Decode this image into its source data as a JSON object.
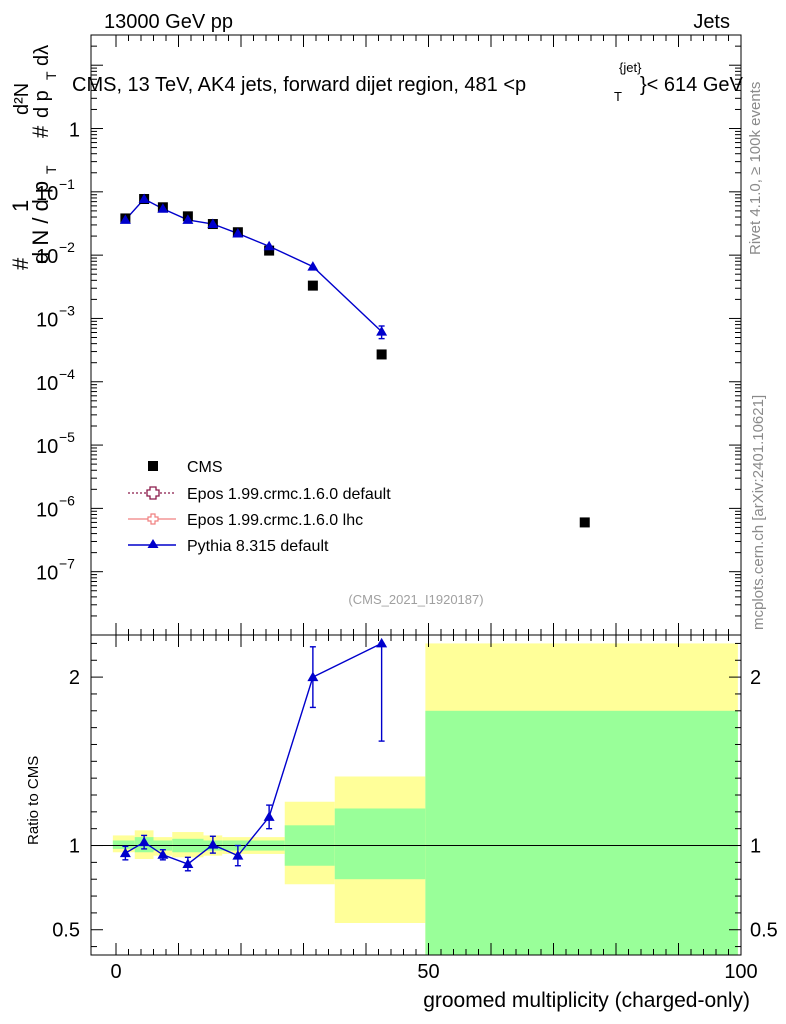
{
  "header": {
    "energy": "13000 GeV pp",
    "category": "Jets",
    "title": "CMS, 13 TeV, AK4 jets, forward dijet region, 481 <p",
    "title_sup": "{jet}",
    "title_sub": "T",
    "title_tail": "}< 614 GeV",
    "side_rivet": "Rivet 4.1.0, ≥ 100k events",
    "side_mcplots": "mcplots.cern.ch [arXiv:2401.10621]",
    "analysis_id": "(CMS_2021_I1920187)"
  },
  "colors": {
    "cms": "#000000",
    "epos_default": "#8b1a4a",
    "epos_lhc": "#f08080",
    "pythia": "#0000cc",
    "band_inner": "#99ff99",
    "band_outer": "#ffff99"
  },
  "chart_data": [
    {
      "type": "scatter",
      "panel": "main",
      "yscale": "log",
      "ylabel": "1/dN/dp_T  d²N/dp_T dλ",
      "ylabel_parts": {
        "num_hash": "#",
        "num_one": "1",
        "den": "d N / d p",
        "den_hash": "#",
        "right_num": "d²N",
        "right_den": "d p",
        "right_lambda": "dλ",
        "sub_t": "T"
      },
      "xlim": [
        -4,
        100
      ],
      "ylim": [
        1e-08,
        30
      ],
      "yticks": [
        {
          "v": 1e-07,
          "base": "10",
          "exp": "−7"
        },
        {
          "v": 1e-06,
          "base": "10",
          "exp": "−6"
        },
        {
          "v": 1e-05,
          "base": "10",
          "exp": "−5"
        },
        {
          "v": 0.0001,
          "base": "10",
          "exp": "−4"
        },
        {
          "v": 0.001,
          "base": "10",
          "exp": "−3"
        },
        {
          "v": 0.01,
          "base": "10",
          "exp": "−2"
        },
        {
          "v": 0.1,
          "base": "10",
          "exp": "−1"
        },
        {
          "v": 1,
          "base": "1",
          "exp": ""
        }
      ],
      "series": [
        {
          "name": "CMS",
          "style": "square",
          "x": [
            1.5,
            4.5,
            7.5,
            11.5,
            15.5,
            19.5,
            24.5,
            31.5,
            42.5,
            75
          ],
          "y": [
            0.038,
            0.077,
            0.057,
            0.041,
            0.031,
            0.023,
            0.0118,
            0.0033,
            0.00027,
            6e-07
          ]
        },
        {
          "name": "Epos 1.99.crmc.1.6.0 default",
          "style": "open-cross",
          "x": [],
          "y": []
        },
        {
          "name": "Epos 1.99.crmc.1.6.0 lhc",
          "style": "open-cross",
          "x": [],
          "y": []
        },
        {
          "name": "Pythia 8.315 default",
          "style": "triangle",
          "x": [
            1.5,
            4.5,
            7.5,
            11.5,
            15.5,
            19.5,
            24.5,
            31.5,
            42.5
          ],
          "y": [
            0.036,
            0.077,
            0.054,
            0.036,
            0.031,
            0.022,
            0.0138,
            0.0066,
            0.00062
          ],
          "err_y": [
            0,
            0,
            0,
            0,
            0,
            0,
            0,
            0,
            0.00014
          ]
        }
      ]
    },
    {
      "type": "line",
      "panel": "ratio",
      "ylabel": "Ratio to CMS",
      "xlabel": "groomed multiplicity (charged-only)",
      "xlim": [
        -4,
        100
      ],
      "ylim": [
        0.35,
        2.25
      ],
      "xticks": [
        0,
        50,
        100
      ],
      "yticks": [
        0.5,
        1,
        2
      ],
      "bands": [
        {
          "x0": -0.5,
          "x1": 3,
          "inner": [
            0.98,
            1.03
          ],
          "outer": [
            0.96,
            1.06
          ]
        },
        {
          "x0": 3,
          "x1": 6,
          "inner": [
            0.96,
            1.05
          ],
          "outer": [
            0.92,
            1.09
          ]
        },
        {
          "x0": 6,
          "x1": 9,
          "inner": [
            0.97,
            1.03
          ],
          "outer": [
            0.94,
            1.05
          ]
        },
        {
          "x0": 9,
          "x1": 14,
          "inner": [
            0.96,
            1.04
          ],
          "outer": [
            0.93,
            1.08
          ]
        },
        {
          "x0": 14,
          "x1": 17,
          "inner": [
            0.97,
            1.03
          ],
          "outer": [
            0.94,
            1.06
          ]
        },
        {
          "x0": 17,
          "x1": 22,
          "inner": [
            0.97,
            1.03
          ],
          "outer": [
            0.95,
            1.05
          ]
        },
        {
          "x0": 22,
          "x1": 27,
          "inner": [
            0.97,
            1.03
          ],
          "outer": [
            0.95,
            1.05
          ]
        },
        {
          "x0": 27,
          "x1": 35,
          "inner": [
            0.88,
            1.12
          ],
          "outer": [
            0.77,
            1.26
          ]
        },
        {
          "x0": 35,
          "x1": 49.5,
          "inner": [
            0.8,
            1.22
          ],
          "outer": [
            0.54,
            1.41
          ]
        },
        {
          "x0": 49.5,
          "x1": 99.5,
          "inner": [
            0.35,
            1.8
          ],
          "outer": [
            0.35,
            2.2
          ]
        }
      ],
      "series": [
        {
          "name": "Pythia 8.315 default",
          "x": [
            1.5,
            4.5,
            7.5,
            11.5,
            15.5,
            19.5,
            24.5,
            31.5,
            42.5
          ],
          "y": [
            0.955,
            1.02,
            0.945,
            0.89,
            1.005,
            0.94,
            1.17,
            2.0,
            2.2
          ],
          "err_lo": [
            0.04,
            0.04,
            0.03,
            0.04,
            0.05,
            0.06,
            0.07,
            0.18,
            0.58
          ],
          "err_hi": [
            0.04,
            0.04,
            0.03,
            0.04,
            0.05,
            0.06,
            0.07,
            0.18,
            0.0
          ]
        }
      ]
    }
  ]
}
